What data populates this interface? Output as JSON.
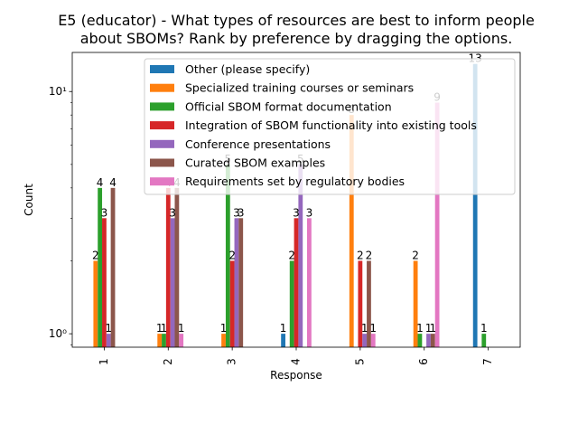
{
  "chart_data": {
    "type": "bar",
    "title": [
      "E5 (educator) - What types of resources are best to inform people",
      "about SBOMs? Rank by preference by dragging the options."
    ],
    "xlabel": "Response",
    "ylabel": "Count",
    "yscale": "log",
    "ylim": [
      0.88,
      14.5
    ],
    "yticks": [
      {
        "value": 1,
        "label": "10⁰"
      },
      {
        "value": 10,
        "label": "10¹"
      }
    ],
    "categories": [
      "1",
      "2",
      "3",
      "4",
      "5",
      "6",
      "7"
    ],
    "legend_position": "upper-center",
    "series": [
      {
        "name": "Other (please specify)",
        "color": "#1f77b4",
        "values": [
          null,
          null,
          null,
          1,
          null,
          null,
          13
        ]
      },
      {
        "name": "Specialized training courses or seminars",
        "color": "#ff7f0e",
        "values": [
          2,
          1,
          1,
          null,
          8,
          2,
          null
        ]
      },
      {
        "name": "Official SBOM format documentation",
        "color": "#2ca02c",
        "values": [
          4,
          1,
          5,
          2,
          null,
          1,
          1
        ]
      },
      {
        "name": "Integration of SBOM functionality into existing tools",
        "color": "#d62728",
        "values": [
          3,
          4,
          2,
          3,
          2,
          null,
          null
        ]
      },
      {
        "name": "Conference presentations",
        "color": "#9467bd",
        "values": [
          1,
          3,
          3,
          5,
          1,
          1,
          null
        ]
      },
      {
        "name": "Curated SBOM examples",
        "color": "#8c564b",
        "values": [
          4,
          4,
          3,
          null,
          2,
          1,
          null
        ]
      },
      {
        "name": "Requirements set by regulatory bodies",
        "color": "#e377c2",
        "values": [
          null,
          1,
          null,
          3,
          1,
          9,
          null
        ]
      }
    ]
  }
}
